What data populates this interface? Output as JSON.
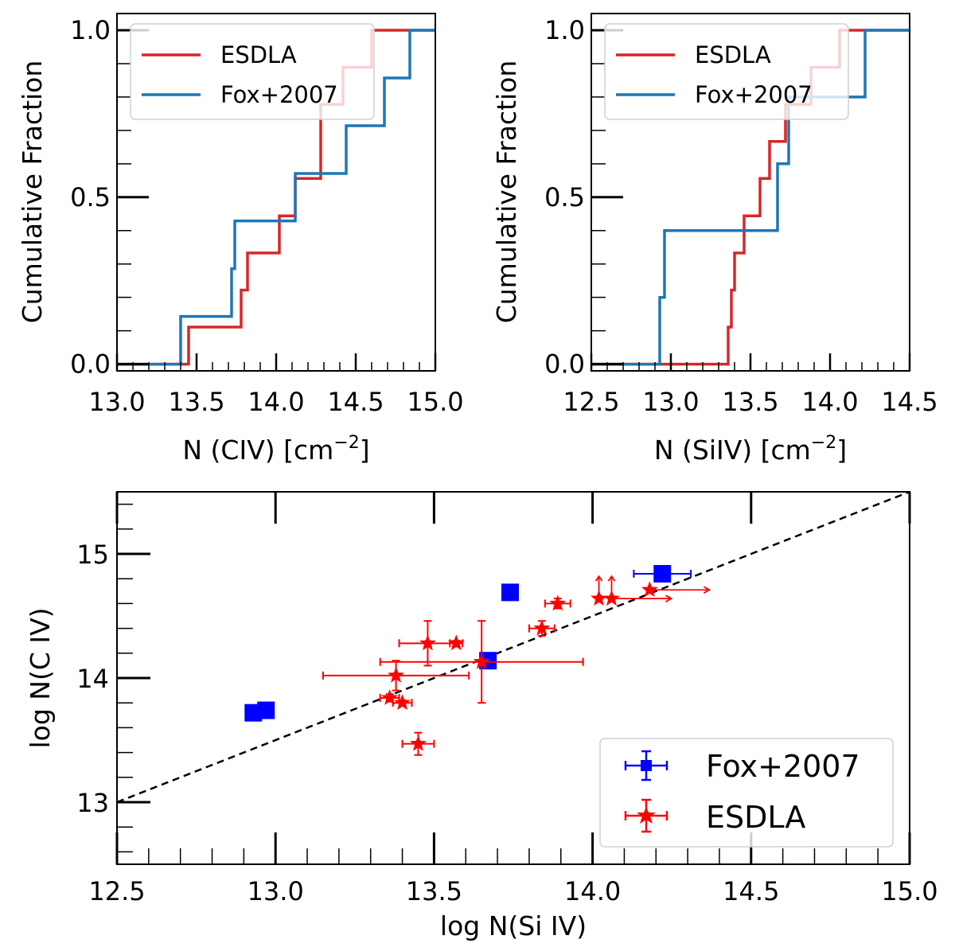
{
  "chart_data": [
    {
      "type": "line",
      "drawstyle": "steps-post",
      "xlabel": "N (CIV) [cm",
      "xlabel_sup": "−2",
      "xlabel_end": "]",
      "ylabel": "Cumulative Fraction",
      "xlim": [
        13.0,
        15.0
      ],
      "ylim": [
        -0.02,
        1.05
      ],
      "xticks": [
        "13.0",
        "13.5",
        "14.0",
        "14.5",
        "15.0"
      ],
      "yticks": [
        "0.0",
        "0.5",
        "1.0"
      ],
      "legend_position": "upper-left",
      "series": [
        {
          "name": "ESDLA",
          "color": "#d62728",
          "x": [
            13.0,
            13.45,
            13.78,
            13.82,
            13.85,
            14.02,
            14.12,
            14.28,
            14.42,
            14.6,
            15.0
          ],
          "y": [
            0.0,
            0.111,
            0.222,
            0.333,
            0.333,
            0.444,
            0.556,
            0.778,
            0.889,
            1.0,
            1.0
          ]
        },
        {
          "name": "Fox+2007",
          "color": "#1f77b4",
          "x": [
            13.0,
            13.4,
            13.72,
            13.74,
            14.12,
            14.44,
            14.68,
            14.84,
            15.0
          ],
          "y": [
            0.0,
            0.143,
            0.286,
            0.429,
            0.571,
            0.714,
            0.857,
            1.0,
            1.0
          ]
        }
      ]
    },
    {
      "type": "line",
      "drawstyle": "steps-post",
      "xlabel": "N (SiIV) [cm",
      "xlabel_sup": "−2",
      "xlabel_end": "]",
      "ylabel": "Cumulative Fraction",
      "xlim": [
        12.5,
        14.5
      ],
      "ylim": [
        -0.02,
        1.05
      ],
      "xticks": [
        "12.5",
        "13.0",
        "13.5",
        "14.0",
        "14.5"
      ],
      "yticks": [
        "0.0",
        "0.5",
        "1.0"
      ],
      "legend_position": "upper-left",
      "series": [
        {
          "name": "ESDLA",
          "color": "#d62728",
          "x": [
            12.5,
            13.36,
            13.38,
            13.4,
            13.46,
            13.56,
            13.62,
            13.72,
            13.82,
            13.88,
            13.96,
            14.06,
            14.5
          ],
          "y": [
            0.0,
            0.111,
            0.222,
            0.333,
            0.444,
            0.556,
            0.667,
            0.778,
            0.778,
            0.889,
            0.889,
            1.0,
            1.0
          ]
        },
        {
          "name": "Fox+2007",
          "color": "#1f77b4",
          "x": [
            12.5,
            12.93,
            12.96,
            13.67,
            13.74,
            14.22,
            14.5
          ],
          "y": [
            0.0,
            0.2,
            0.4,
            0.6,
            0.8,
            1.0,
            1.0
          ]
        }
      ]
    },
    {
      "type": "scatter",
      "xlabel": "log N(Si IV)",
      "ylabel": "log N(C IV)",
      "xlim": [
        12.5,
        15.0
      ],
      "ylim": [
        12.5,
        15.5
      ],
      "xticks": [
        "12.5",
        "13.0",
        "13.5",
        "14.0",
        "14.5",
        "15.0"
      ],
      "yticks": [
        "13",
        "14",
        "15"
      ],
      "one_to_one_line": {
        "x": [
          12.5,
          15.0
        ],
        "y": [
          13.0,
          15.5
        ]
      },
      "legend_position": "lower-right",
      "series": [
        {
          "name": "Fox+2007",
          "color": "#0000ff",
          "marker": "square",
          "points": [
            {
              "x": 12.93,
              "y": 13.72,
              "xerr": 0.02,
              "yerr": 0.02
            },
            {
              "x": 12.97,
              "y": 13.74,
              "xerr": 0.02,
              "yerr": 0.02
            },
            {
              "x": 13.67,
              "y": 14.14,
              "xerr": 0.02,
              "yerr": 0.03
            },
            {
              "x": 13.74,
              "y": 14.69,
              "xerr": 0.02,
              "yerr": 0.02
            },
            {
              "x": 14.22,
              "y": 14.84,
              "xerr": 0.09,
              "yerr": 0.02
            }
          ]
        },
        {
          "name": "ESDLA",
          "color": "#ff0000",
          "marker": "star",
          "points": [
            {
              "x": 13.36,
              "y": 13.84,
              "xerr": 0.03,
              "yerr": 0.03
            },
            {
              "x": 13.38,
              "y": 14.02,
              "xerr": 0.23,
              "yerr": 0.12
            },
            {
              "x": 13.4,
              "y": 13.8,
              "xerr": 0.03,
              "yerr": 0.02
            },
            {
              "x": 13.45,
              "y": 13.47,
              "xerr": 0.05,
              "yerr": 0.09
            },
            {
              "x": 13.48,
              "y": 14.28,
              "xerr": 0.09,
              "yerr": 0.18
            },
            {
              "x": 13.57,
              "y": 14.28,
              "xerr": 0.02,
              "yerr": 0.02
            },
            {
              "x": 13.65,
              "y": 14.13,
              "xerr": 0.32,
              "yerr": 0.33
            },
            {
              "x": 13.84,
              "y": 14.4,
              "xerr": 0.04,
              "yerr": 0.06
            },
            {
              "x": 13.89,
              "y": 14.6,
              "xerr": 0.04,
              "yerr": 0.04
            },
            {
              "x": 14.02,
              "y": 14.64,
              "xerr": 0.0,
              "yerr": 0.0,
              "lower_limit_y": true
            },
            {
              "x": 14.06,
              "y": 14.64,
              "xerr": 0.0,
              "yerr": 0.0,
              "lower_limit_y": true,
              "lower_limit_x": true
            },
            {
              "x": 14.18,
              "y": 14.71,
              "xerr": 0.0,
              "yerr": 0.0,
              "lower_limit_x": true
            }
          ]
        }
      ]
    }
  ]
}
